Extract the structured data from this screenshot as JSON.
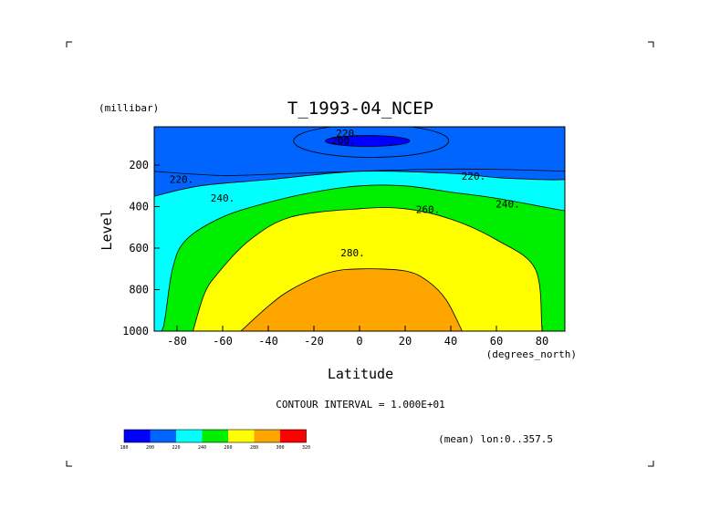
{
  "chart_data": {
    "type": "contour",
    "title": "T_1993-04_NCEP",
    "xlabel": "Latitude",
    "x_units": "(degrees_north)",
    "ylabel": "Level",
    "y_units": "(millibar)",
    "xlim": [
      -90,
      90
    ],
    "ylim": [
      1000,
      10
    ],
    "y_inverted": true,
    "x_ticks": [
      -80,
      -60,
      -40,
      -20,
      0,
      20,
      40,
      60,
      80
    ],
    "y_ticks": [
      1000,
      800,
      600,
      400,
      200
    ],
    "contour_interval_text": "CONTOUR INTERVAL = 1.000E+01",
    "footnote": "(mean) lon:0..357.5",
    "contour_labels": [
      "220.",
      "200.",
      "220.",
      "220.",
      "240.",
      "260.",
      "240.",
      "280."
    ],
    "levels": [
      {
        "value": 180,
        "color": "#0000ff"
      },
      {
        "value": 200,
        "color": "#0064ff"
      },
      {
        "value": 220,
        "color": "#00ffff"
      },
      {
        "value": 240,
        "color": "#00ee00"
      },
      {
        "value": 260,
        "color": "#ffff00"
      },
      {
        "value": 280,
        "color": "#ffa500"
      },
      {
        "value": 300,
        "color": "#ff0000"
      }
    ],
    "colorbar_labels": [
      "180",
      "200",
      "220",
      "240",
      "260",
      "280",
      "300",
      "320"
    ],
    "bands": [
      {
        "fill": "#0064ff",
        "temp_range": [
          200,
          220
        ],
        "boundary": [
          [
            -90,
            230
          ],
          [
            -60,
            250
          ],
          [
            -30,
            240
          ],
          [
            0,
            230
          ],
          [
            30,
            220
          ],
          [
            60,
            220
          ],
          [
            90,
            230
          ]
        ]
      },
      {
        "fill": "#00ffff",
        "temp_range": [
          220,
          240
        ],
        "boundary": [
          [
            -90,
            350
          ],
          [
            -70,
            300
          ],
          [
            -40,
            270
          ],
          [
            0,
            230
          ],
          [
            40,
            240
          ],
          [
            60,
            260
          ],
          [
            80,
            270
          ],
          [
            90,
            270
          ]
        ]
      },
      {
        "fill": "#00ee00",
        "temp_range": [
          240,
          260
        ],
        "boundary": [
          [
            -90,
            1000
          ],
          [
            -86,
            980
          ],
          [
            -82,
            700
          ],
          [
            -76,
            560
          ],
          [
            -60,
            450
          ],
          [
            -40,
            380
          ],
          [
            -20,
            330
          ],
          [
            0,
            300
          ],
          [
            20,
            300
          ],
          [
            40,
            330
          ],
          [
            60,
            360
          ],
          [
            80,
            400
          ],
          [
            90,
            420
          ]
        ]
      },
      {
        "fill": "#ffff00",
        "temp_range": [
          260,
          280
        ],
        "boundary": [
          [
            -73,
            1000
          ],
          [
            -68,
            820
          ],
          [
            -62,
            720
          ],
          [
            -48,
            560
          ],
          [
            -30,
            450
          ],
          [
            0,
            410
          ],
          [
            20,
            410
          ],
          [
            40,
            460
          ],
          [
            60,
            560
          ],
          [
            77,
            700
          ],
          [
            80,
            990
          ],
          [
            81,
            1000
          ]
        ]
      },
      {
        "fill": "#ffa500",
        "temp_range": [
          280,
          290
        ],
        "boundary": [
          [
            -52,
            1000
          ],
          [
            -40,
            880
          ],
          [
            -30,
            800
          ],
          [
            -14,
            720
          ],
          [
            0,
            700
          ],
          [
            20,
            710
          ],
          [
            30,
            760
          ],
          [
            38,
            850
          ],
          [
            45,
            1000
          ]
        ]
      }
    ],
    "cold_core": {
      "fill": "#0000ff",
      "temp_range": [
        180,
        200
      ],
      "lat_range": [
        -15,
        22
      ],
      "level_range": [
        60,
        100
      ]
    }
  }
}
